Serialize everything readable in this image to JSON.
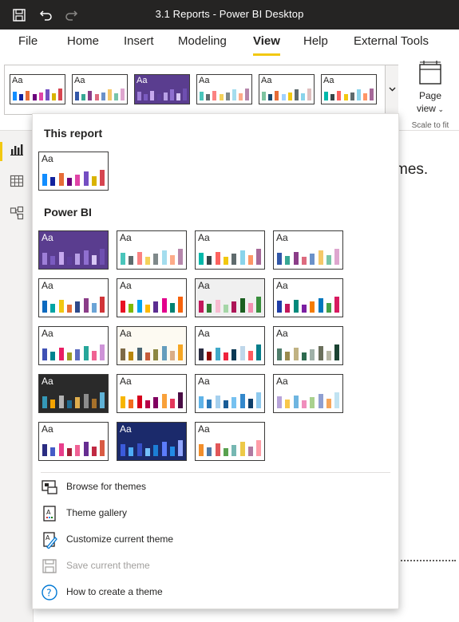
{
  "window": {
    "title": "3.1 Reports - Power BI Desktop"
  },
  "tabs": [
    {
      "label": "File",
      "active": false
    },
    {
      "label": "Home",
      "active": false
    },
    {
      "label": "Insert",
      "active": false
    },
    {
      "label": "Modeling",
      "active": false
    },
    {
      "label": "View",
      "active": true
    },
    {
      "label": "Help",
      "active": false
    },
    {
      "label": "External Tools",
      "active": false
    }
  ],
  "ribbon": {
    "page_view_line1": "Page",
    "page_view_line2": "view",
    "scale_to_fit": "Scale to fit"
  },
  "canvas": {
    "partial_text": "mes."
  },
  "sample_text": "Aa",
  "themes": [
    {
      "bg": "#ffffff",
      "aa": "#252423",
      "bars": [
        "#118dff",
        "#12239e",
        "#e66c37",
        "#6b007b",
        "#e044a7",
        "#744ec2",
        "#d9b300",
        "#d64550"
      ]
    },
    {
      "bg": "#ffffff",
      "aa": "#252423",
      "bars": [
        "#3257a8",
        "#37a794",
        "#8b3d88",
        "#dd6b7f",
        "#6b91c9",
        "#f5c869",
        "#77c4a8",
        "#dea6cf"
      ]
    },
    {
      "bg": "#5a3d8f",
      "aa": "#ffffff",
      "bars": [
        "#9e7fd8",
        "#7a5bc0",
        "#c6a9ee",
        "#5e3f9c",
        "#b8a0e6",
        "#8f6fd0",
        "#d8c7f4",
        "#6e4fb0"
      ]
    },
    {
      "bg": "#ffffff",
      "aa": "#252423",
      "bars": [
        "#4ac5bb",
        "#5f6b6d",
        "#fb8281",
        "#f4d25a",
        "#7f898a",
        "#a4ddee",
        "#fdab89",
        "#b687ac"
      ]
    },
    {
      "bg": "#ffffff",
      "aa": "#252423",
      "bars": [
        "#7cc3a0",
        "#1a4b6f",
        "#e66c37",
        "#a0d1ff",
        "#f2c80f",
        "#5f6b6d",
        "#8ad4eb",
        "#dfbfbf"
      ]
    },
    {
      "bg": "#ffffff",
      "aa": "#252423",
      "bars": [
        "#01b8aa",
        "#374649",
        "#fd625e",
        "#f2c80f",
        "#5f6b6d",
        "#8ad4eb",
        "#fe9666",
        "#a66999"
      ]
    },
    {
      "bg": "#ffffff",
      "aa": "#252423",
      "bars": [
        "#118dff",
        "#12239e",
        "#e66c37",
        "#6b007b",
        "#e044a7",
        "#744ec2",
        "#d9b300",
        "#d64550"
      ]
    },
    {
      "bg": "#5a3d8f",
      "aa": "#ffffff",
      "bars": [
        "#9e7fd8",
        "#7a5bc0",
        "#c6a9ee",
        "#5e3f9c",
        "#b8a0e6",
        "#8f6fd0",
        "#d8c7f4",
        "#6e4fb0"
      ]
    },
    {
      "bg": "#ffffff",
      "aa": "#252423",
      "bars": [
        "#4ac5bb",
        "#5f6b6d",
        "#fb8281",
        "#f4d25a",
        "#7f898a",
        "#a4ddee",
        "#fdab89",
        "#b687ac"
      ]
    },
    {
      "bg": "#ffffff",
      "aa": "#252423",
      "bars": [
        "#01b8aa",
        "#374649",
        "#fd625e",
        "#f2c80f",
        "#5f6b6d",
        "#8ad4eb",
        "#fe9666",
        "#a66999"
      ]
    },
    {
      "bg": "#ffffff",
      "aa": "#252423",
      "bars": [
        "#3257a8",
        "#37a794",
        "#8b3d88",
        "#dd6b7f",
        "#6b91c9",
        "#f5c869",
        "#77c4a8",
        "#dea6cf"
      ]
    },
    {
      "bg": "#ffffff",
      "aa": "#252423",
      "bars": [
        "#0d6abf",
        "#00a5a5",
        "#f2c811",
        "#e66c37",
        "#2e4a8b",
        "#8b3d88",
        "#6ba4d6",
        "#d13438"
      ]
    },
    {
      "bg": "#ffffff",
      "aa": "#252423",
      "bars": [
        "#e81123",
        "#7fba00",
        "#00a4ef",
        "#ffb900",
        "#5c2d91",
        "#e3008c",
        "#008272",
        "#f7630c"
      ]
    },
    {
      "bg": "#f0f0f0",
      "aa": "#252423",
      "bars": [
        "#c2185b",
        "#2e7d32",
        "#f8bbd0",
        "#a5d6a7",
        "#ad1457",
        "#1b5e20",
        "#f48fb1",
        "#388e3c"
      ]
    },
    {
      "bg": "#ffffff",
      "aa": "#252423",
      "bars": [
        "#1f3ea8",
        "#c2185b",
        "#00897b",
        "#7b1fa2",
        "#f57c00",
        "#0277bd",
        "#43a047",
        "#d81b60"
      ]
    },
    {
      "bg": "#ffffff",
      "aa": "#252423",
      "bars": [
        "#3f51b5",
        "#00838f",
        "#e91e63",
        "#9e9d24",
        "#5c6bc0",
        "#26a69a",
        "#f06292",
        "#ce93d8"
      ]
    },
    {
      "bg": "#fdfaf2",
      "aa": "#252423",
      "bars": [
        "#7e6a46",
        "#b8860b",
        "#4a6572",
        "#c75b39",
        "#8d8741",
        "#659dbd",
        "#daad86",
        "#f6a623"
      ]
    },
    {
      "bg": "#ffffff",
      "aa": "#252423",
      "bars": [
        "#2b2d42",
        "#8d0801",
        "#41a9c9",
        "#ef233c",
        "#0b3954",
        "#bfd7ea",
        "#ff5a5f",
        "#087e8b"
      ]
    },
    {
      "bg": "#ffffff",
      "aa": "#252423",
      "bars": [
        "#4f7d6b",
        "#9a8a4d",
        "#c0b283",
        "#2d6a4f",
        "#9fb1a8",
        "#6b705c",
        "#b7b7a4",
        "#1b4332"
      ]
    },
    {
      "bg": "#2a2a2a",
      "aa": "#ffffff",
      "bars": [
        "#3599b8",
        "#f4a300",
        "#b3b3b3",
        "#1f6b91",
        "#dfae4d",
        "#8c8c8c",
        "#a6712b",
        "#5fb2d6"
      ]
    },
    {
      "bg": "#ffffff",
      "aa": "#252423",
      "bars": [
        "#f7b500",
        "#f26b1d",
        "#d6001c",
        "#b70048",
        "#800060",
        "#f9a13a",
        "#e4365b",
        "#4a0d45"
      ]
    },
    {
      "bg": "#ffffff",
      "aa": "#252423",
      "bars": [
        "#5fb3e8",
        "#2979b9",
        "#a5d0ee",
        "#1a5d97",
        "#76c1f0",
        "#3388cc",
        "#0f3f6b",
        "#8ec9ee"
      ]
    },
    {
      "bg": "#ffffff",
      "aa": "#252423",
      "bars": [
        "#b7a3d9",
        "#f8c74a",
        "#6eb5e0",
        "#f08ebc",
        "#a9d18e",
        "#8f9fd1",
        "#f6a65a",
        "#c1e3f2"
      ]
    },
    {
      "bg": "#ffffff",
      "aa": "#252423",
      "bars": [
        "#2b2d82",
        "#455cc7",
        "#e83e8c",
        "#a51e36",
        "#f06195",
        "#662d91",
        "#c02942",
        "#d95b43"
      ]
    },
    {
      "bg": "#1b2a6b",
      "aa": "#ffffff",
      "bars": [
        "#3b5bdb",
        "#4dabf7",
        "#364fc7",
        "#74c0fc",
        "#1c7ed6",
        "#5c7cfa",
        "#228be6",
        "#91a7ff"
      ]
    },
    {
      "bg": "#ffffff",
      "aa": "#252423",
      "bars": [
        "#f28e2b",
        "#4e79a7",
        "#e15759",
        "#59a14f",
        "#76b7b2",
        "#edc948",
        "#b07aa1",
        "#ff9da7"
      ]
    }
  ],
  "sections": {
    "this_report": "This report",
    "power_bi": "Power BI"
  },
  "menu": [
    {
      "label": "Browse for themes",
      "icon": "browse-icon",
      "disabled": false
    },
    {
      "label": "Theme gallery",
      "icon": "gallery-icon",
      "disabled": false
    },
    {
      "label": "Customize current theme",
      "icon": "customize-icon",
      "disabled": false
    },
    {
      "label": "Save current theme",
      "icon": "save-icon",
      "disabled": true
    },
    {
      "label": "How to create a theme",
      "icon": "help-icon",
      "disabled": false
    }
  ]
}
